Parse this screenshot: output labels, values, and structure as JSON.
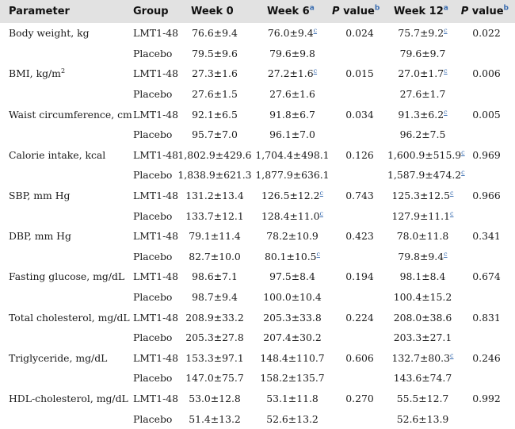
{
  "header": {
    "parameter": "Parameter",
    "group": "Group",
    "week0": "Week 0",
    "week6": "Week 6",
    "week6_note": "a",
    "p_value_1": "value",
    "p_value_1_prefix": "P",
    "p_value_1_note": "b",
    "week12": "Week 12",
    "week12_note": "a",
    "p_value_2": "value",
    "p_value_2_prefix": "P",
    "p_value_2_note": "b"
  },
  "rows": [
    {
      "parameter": "Body weight, kg",
      "group": "LMT1-48",
      "week0": "76.6±9.4",
      "week6": "76.0±9.4",
      "week6_note": "c",
      "p1": "0.024",
      "week12": "75.7±9.2",
      "week12_note": "c",
      "p2": "0.022"
    },
    {
      "parameter": "",
      "group": "Placebo",
      "week0": "79.5±9.6",
      "week6": "79.6±9.8",
      "week6_note": "",
      "p1": "",
      "week12": "79.6±9.7",
      "week12_note": "",
      "p2": ""
    },
    {
      "parameter": "BMI, kg/m",
      "parameter_sup": "2",
      "group": "LMT1-48",
      "week0": "27.3±1.6",
      "week6": "27.2±1.6",
      "week6_note": "c",
      "p1": "0.015",
      "week12": "27.0±1.7",
      "week12_note": "c",
      "p2": "0.006"
    },
    {
      "parameter": "",
      "group": "Placebo",
      "week0": "27.6±1.5",
      "week6": "27.6±1.6",
      "week6_note": "",
      "p1": "",
      "week12": "27.6±1.7",
      "week12_note": "",
      "p2": ""
    },
    {
      "parameter": "Waist circumference, cm",
      "group": "LMT1-48",
      "week0": "92.1±6.5",
      "week6": "91.8±6.7",
      "week6_note": "",
      "p1": "0.034",
      "week12": "91.3±6.2",
      "week12_note": "c",
      "p2": "0.005"
    },
    {
      "parameter": "",
      "group": "Placebo",
      "week0": "95.7±7.0",
      "week6": "96.1±7.0",
      "week6_note": "",
      "p1": "",
      "week12": "96.2±7.5",
      "week12_note": "",
      "p2": ""
    },
    {
      "parameter": "Calorie intake, kcal",
      "group": "LMT1-48",
      "week0": "1,802.9±429.6",
      "week6": "1,704.4±498.1",
      "week6_note": "",
      "p1": "0.126",
      "week12": "1,600.9±515.9",
      "week12_note": "c",
      "p2": "0.969"
    },
    {
      "parameter": "",
      "group": "Placebo",
      "week0": "1,838.9±621.3",
      "week6": "1,877.9±636.1",
      "week6_note": "",
      "p1": "",
      "week12": "1,587.9±474.2",
      "week12_note": "c",
      "p2": ""
    },
    {
      "parameter": "SBP, mm Hg",
      "group": "LMT1-48",
      "week0": "131.2±13.4",
      "week6": "126.5±12.2",
      "week6_note": "c",
      "p1": "0.743",
      "week12": "125.3±12.5",
      "week12_note": "c",
      "p2": "0.966"
    },
    {
      "parameter": "",
      "group": "Placebo",
      "week0": "133.7±12.1",
      "week6": "128.4±11.0",
      "week6_note": "c",
      "p1": "",
      "week12": "127.9±11.1",
      "week12_note": "c",
      "p2": ""
    },
    {
      "parameter": "DBP, mm Hg",
      "group": "LMT1-48",
      "week0": "79.1±11.4",
      "week6": "78.2±10.9",
      "week6_note": "",
      "p1": "0.423",
      "week12": "78.0±11.8",
      "week12_note": "",
      "p2": "0.341"
    },
    {
      "parameter": "",
      "group": "Placebo",
      "week0": "82.7±10.0",
      "week6": "80.1±10.5",
      "week6_note": "c",
      "p1": "",
      "week12": "79.8±9.4",
      "week12_note": "c",
      "p2": ""
    },
    {
      "parameter": "Fasting glucose, mg/dL",
      "group": "LMT1-48",
      "week0": "98.6±7.1",
      "week6": "97.5±8.4",
      "week6_note": "",
      "p1": "0.194",
      "week12": "98.1±8.4",
      "week12_note": "",
      "p2": "0.674"
    },
    {
      "parameter": "",
      "group": "Placebo",
      "week0": "98.7±9.4",
      "week6": "100.0±10.4",
      "week6_note": "",
      "p1": "",
      "week12": "100.4±15.2",
      "week12_note": "",
      "p2": ""
    },
    {
      "parameter": "Total cholesterol, mg/dL",
      "group": "LMT1-48",
      "week0": "208.9±33.2",
      "week6": "205.3±33.8",
      "week6_note": "",
      "p1": "0.224",
      "week12": "208.0±38.6",
      "week12_note": "",
      "p2": "0.831"
    },
    {
      "parameter": "",
      "group": "Placebo",
      "week0": "205.3±27.8",
      "week6": "207.4±30.2",
      "week6_note": "",
      "p1": "",
      "week12": "203.3±27.1",
      "week12_note": "",
      "p2": ""
    },
    {
      "parameter": "Triglyceride, mg/dL",
      "group": "LMT1-48",
      "week0": "153.3±97.1",
      "week6": "148.4±110.7",
      "week6_note": "",
      "p1": "0.606",
      "week12": "132.7±80.3",
      "week12_note": "c",
      "p2": "0.246"
    },
    {
      "parameter": "",
      "group": "Placebo",
      "week0": "147.0±75.7",
      "week6": "158.2±135.7",
      "week6_note": "",
      "p1": "",
      "week12": "143.6±74.7",
      "week12_note": "",
      "p2": ""
    },
    {
      "parameter": "HDL-cholesterol, mg/dL",
      "group": "LMT1-48",
      "week0": "53.0±12.8",
      "week6": "53.1±11.8",
      "week6_note": "",
      "p1": "0.270",
      "week12": "55.5±12.7",
      "week12_note": "",
      "p2": "0.992"
    },
    {
      "parameter": "",
      "group": "Placebo",
      "week0": "51.4±13.2",
      "week6": "52.6±13.2",
      "week6_note": "",
      "p1": "",
      "week12": "52.6±13.9",
      "week12_note": "",
      "p2": ""
    }
  ]
}
